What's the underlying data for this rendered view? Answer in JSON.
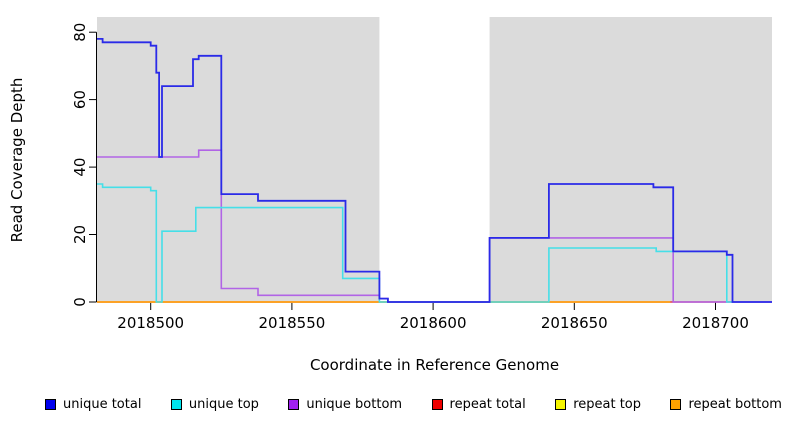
{
  "axes": {
    "x_label": "Coordinate in Reference Genome",
    "y_label": "Read Coverage Depth"
  },
  "chart_data": {
    "type": "line",
    "step": true,
    "title": "",
    "xlabel": "Coordinate in Reference Genome",
    "ylabel": "Read Coverage Depth",
    "xlim": [
      2018481,
      2018720
    ],
    "ylim": [
      0,
      84.5
    ],
    "x_ticks": [
      2018500,
      2018550,
      2018600,
      2018650,
      2018700
    ],
    "y_ticks": [
      0,
      20,
      40,
      60,
      80
    ],
    "grid": false,
    "legend_position": "bottom",
    "shaded_regions": {
      "color": "#DBDBDB",
      "x_ranges": [
        [
          2018481,
          2018581
        ],
        [
          2018620,
          2018720
        ]
      ]
    },
    "gap_region": [
      2018581,
      2018620
    ],
    "series": [
      {
        "name": "repeat top",
        "color": "#F0F000",
        "width": 1.6,
        "end": 2018684,
        "points": [
          [
            2018481,
            0
          ]
        ]
      },
      {
        "name": "repeat total",
        "color": "#E03A55",
        "width": 1.6,
        "end": 2018706,
        "points": [
          [
            2018481,
            0
          ]
        ]
      },
      {
        "name": "repeat bottom",
        "color": "#FFA41E",
        "width": 1.8,
        "end": 2018684,
        "points": [
          [
            2018481,
            0
          ]
        ]
      },
      {
        "name": "unique bottom",
        "color": "#B164E6",
        "width": 1.6,
        "end": 2018720,
        "points": [
          [
            2018481,
            43
          ],
          [
            2018517,
            45
          ],
          [
            2018525,
            4
          ],
          [
            2018538,
            2
          ],
          [
            2018581,
            1
          ],
          [
            2018584,
            0
          ],
          [
            2018620,
            19
          ],
          [
            2018685,
            0
          ]
        ]
      },
      {
        "name": "unique top",
        "color": "#45DFE8",
        "width": 1.6,
        "end": 2018706,
        "points": [
          [
            2018481,
            35
          ],
          [
            2018483,
            34
          ],
          [
            2018500,
            33
          ],
          [
            2018502,
            0
          ],
          [
            2018504,
            21
          ],
          [
            2018516,
            28
          ],
          [
            2018568,
            7
          ],
          [
            2018581,
            0
          ],
          [
            2018641,
            16
          ],
          [
            2018679,
            15
          ],
          [
            2018704,
            0
          ]
        ]
      },
      {
        "name": "unique total",
        "color": "#2A2AE8",
        "width": 1.8,
        "end": 2018720,
        "points": [
          [
            2018481,
            78
          ],
          [
            2018483,
            77
          ],
          [
            2018500,
            76
          ],
          [
            2018502,
            68
          ],
          [
            2018503,
            43
          ],
          [
            2018504,
            64
          ],
          [
            2018515,
            72
          ],
          [
            2018517,
            73
          ],
          [
            2018525,
            32
          ],
          [
            2018538,
            30
          ],
          [
            2018569,
            9
          ],
          [
            2018581,
            1
          ],
          [
            2018584,
            0
          ],
          [
            2018620,
            19
          ],
          [
            2018641,
            35
          ],
          [
            2018678,
            34
          ],
          [
            2018685,
            15
          ],
          [
            2018704,
            14
          ],
          [
            2018706,
            0
          ]
        ]
      }
    ]
  },
  "legend": {
    "items": [
      {
        "label": "unique total",
        "color": "#0000EE"
      },
      {
        "label": "unique top",
        "color": "#00E5EE"
      },
      {
        "label": "unique bottom",
        "color": "#A020F0"
      },
      {
        "label": "repeat total",
        "color": "#EE0000"
      },
      {
        "label": "repeat top",
        "color": "#F5F500"
      },
      {
        "label": "repeat bottom",
        "color": "#FFA200"
      }
    ]
  }
}
